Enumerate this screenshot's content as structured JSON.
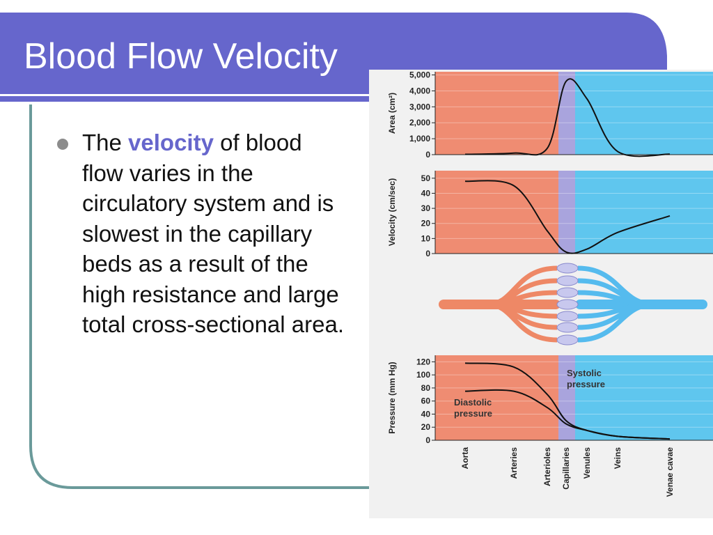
{
  "slide": {
    "title": "Blood Flow Velocity",
    "bullet": {
      "before": "The ",
      "emphasis": "velocity",
      "after": " of blood flow varies in the circulatory system and is slowest in the capillary beds as a result of the high resistance and large total cross-sectional area."
    }
  },
  "chart_data": [
    {
      "type": "line",
      "y_label": "Area (cm²)",
      "categories": [
        "Aorta",
        "Arteries",
        "Arterioles",
        "Capillaries",
        "Venules",
        "Veins",
        "Venae cavae"
      ],
      "series": [
        {
          "color": "#111111",
          "values": [
            20,
            100,
            400,
            4600,
            3500,
            200,
            30
          ]
        }
      ],
      "ylim": [
        0,
        5200
      ],
      "yticks": [
        0,
        {
          "value": 1000,
          "label": "1,000"
        },
        {
          "value": 2000,
          "label": "2,000"
        },
        {
          "value": 3000,
          "label": "3,000"
        },
        {
          "value": 4000,
          "label": "4,000"
        },
        {
          "value": 5000,
          "label": "5,000"
        }
      ]
    },
    {
      "type": "line",
      "y_label": "Velocity (cm/sec)",
      "categories": [
        "Aorta",
        "Arteries",
        "Arterioles",
        "Capillaries",
        "Venules",
        "Veins",
        "Venae cavae"
      ],
      "series": [
        {
          "color": "#111111",
          "values": [
            48,
            45,
            15,
            1,
            3,
            14,
            25
          ]
        }
      ],
      "ylim": [
        0,
        55
      ],
      "yticks": [
        0,
        10,
        20,
        30,
        40,
        50
      ]
    },
    {
      "type": "line",
      "y_label": "Pressure (mm Hg)",
      "categories": [
        "Aorta",
        "Arteries",
        "Arterioles",
        "Capillaries",
        "Venules",
        "Veins",
        "Venae cavae"
      ],
      "series": [
        {
          "color": "#111111",
          "values": [
            118,
            112,
            70,
            30,
            15,
            6,
            2
          ]
        },
        {
          "color": "#111111",
          "values": [
            75,
            75,
            50,
            25,
            15,
            6,
            2
          ]
        }
      ],
      "ylim": [
        0,
        130
      ],
      "yticks": [
        0,
        20,
        40,
        60,
        80,
        100,
        120
      ],
      "annotations": [
        [
          "Systolic",
          "pressure"
        ],
        [
          "Diastolic",
          "pressure"
        ]
      ]
    }
  ]
}
